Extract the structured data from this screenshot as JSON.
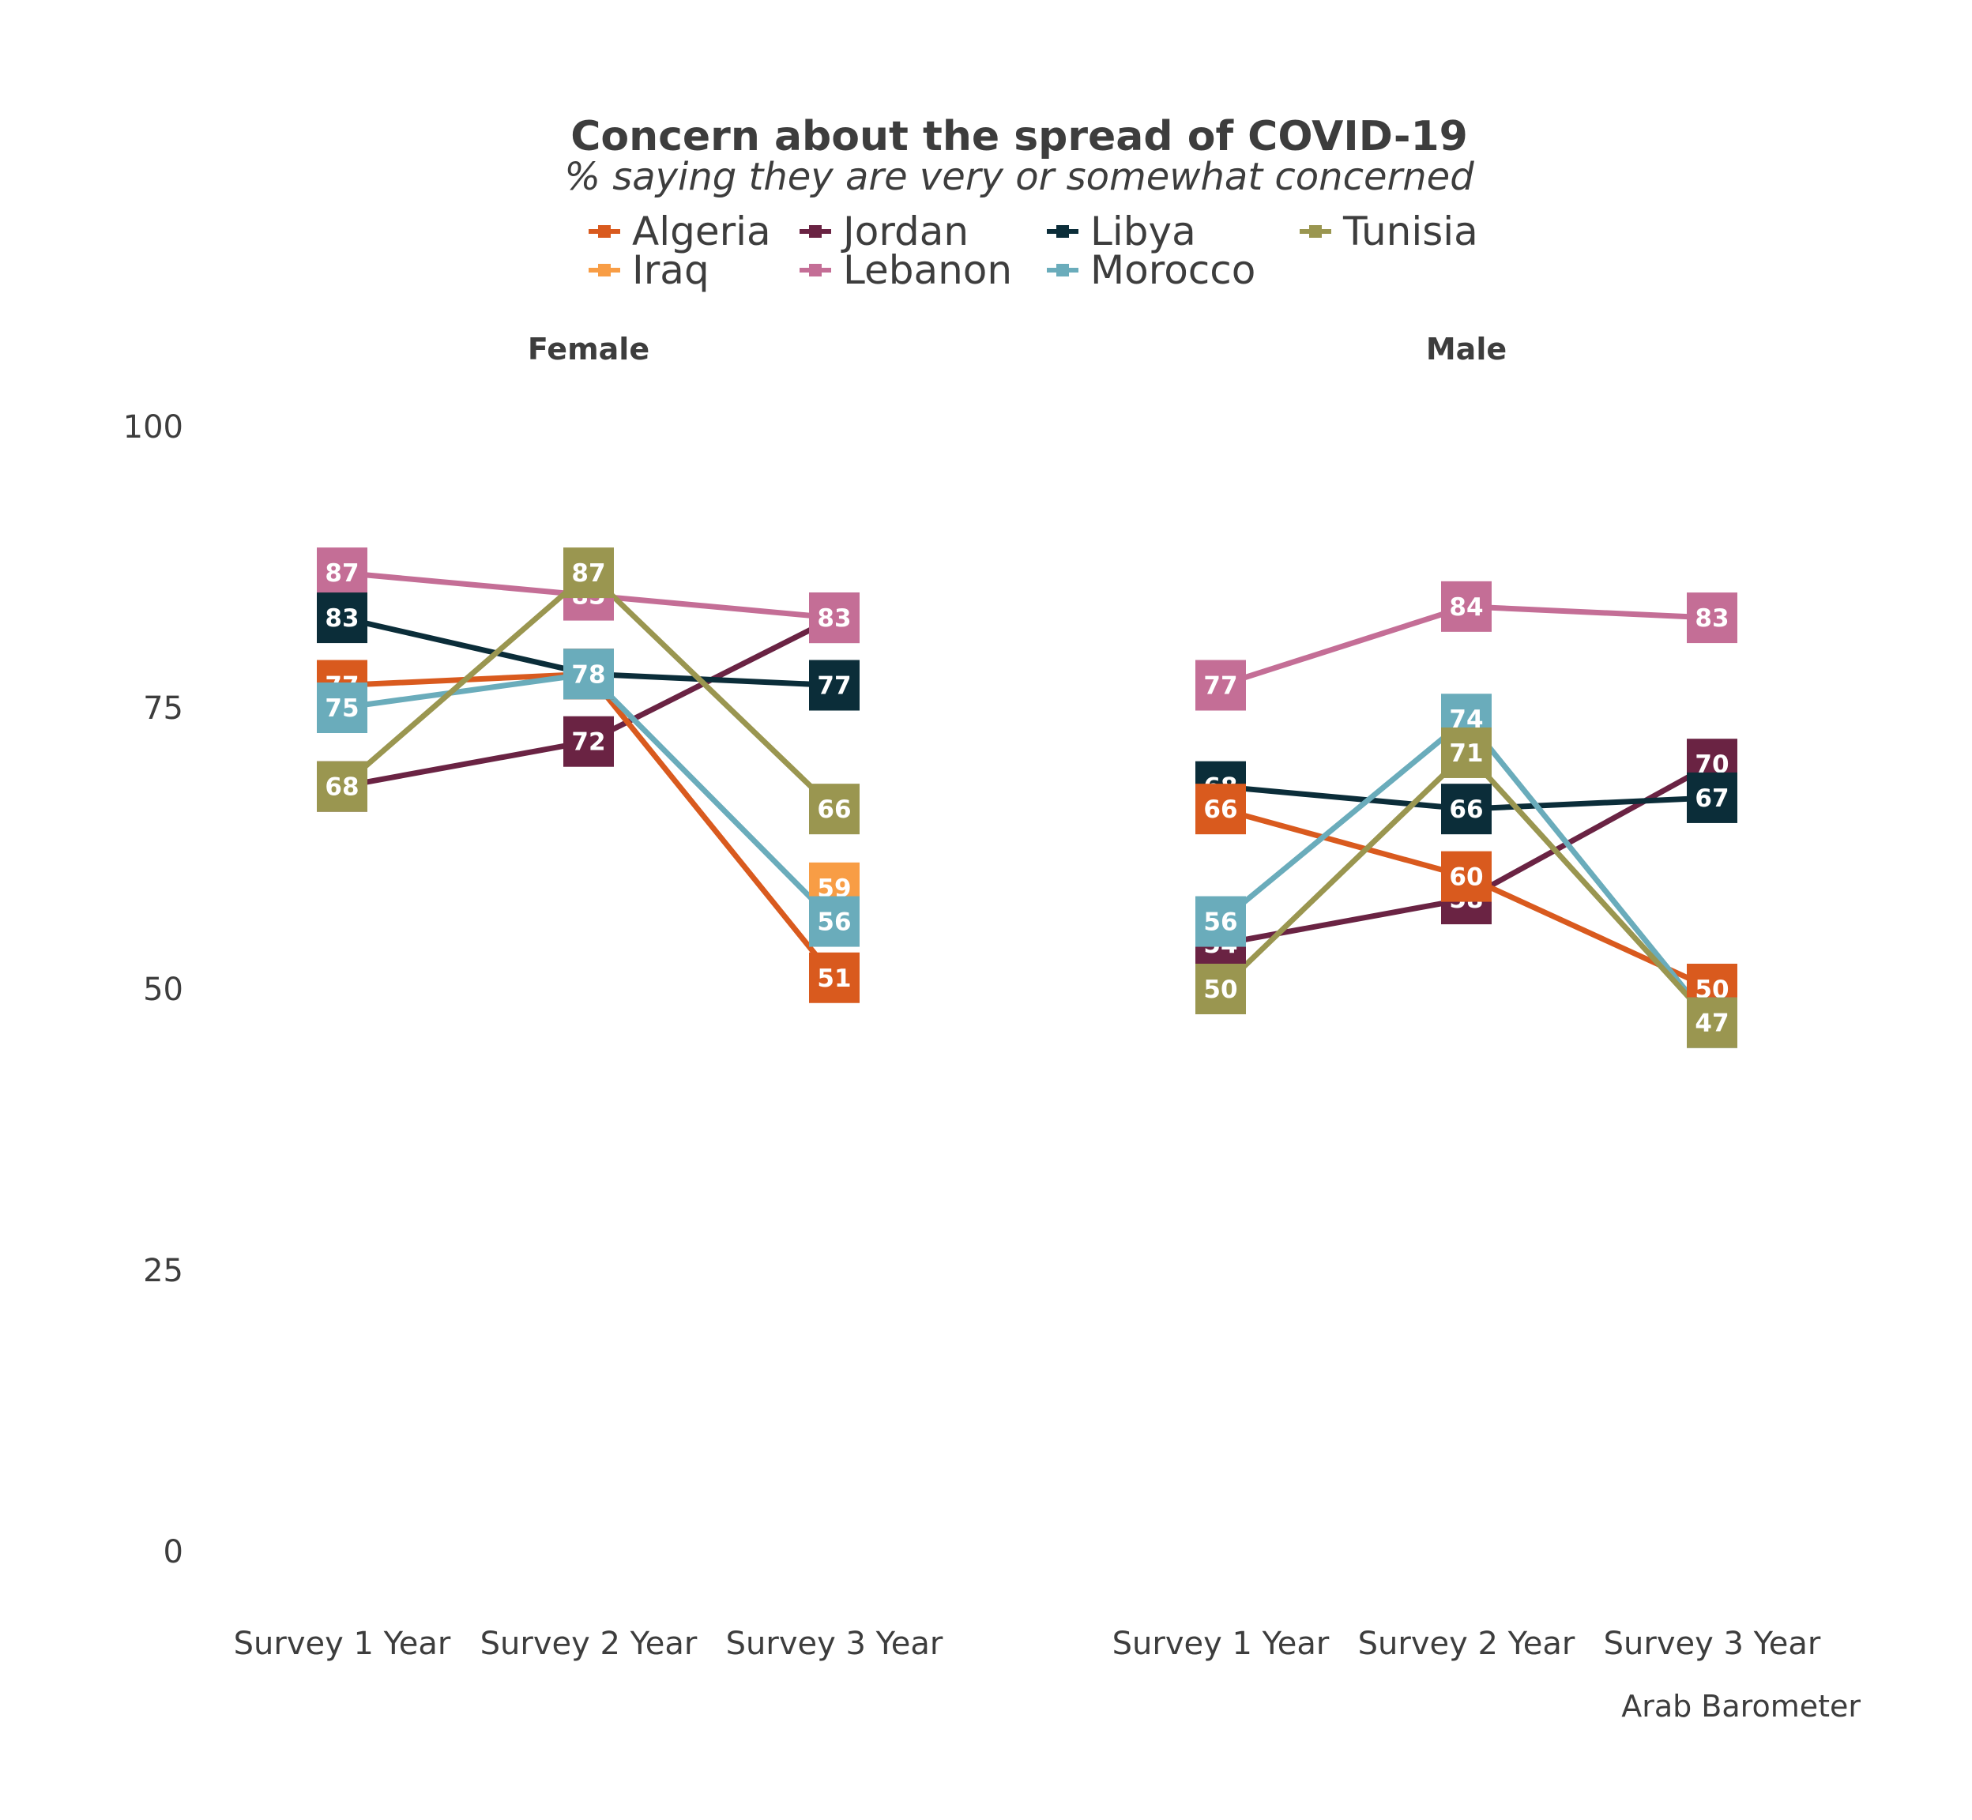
{
  "chart_data": {
    "type": "line",
    "title": "Concern about the spread of COVID-19",
    "subtitle": "% saying they are very or somewhat concerned",
    "caption": "Arab Barometer",
    "ylim": [
      0,
      100
    ],
    "y_ticks": [
      "0",
      "25",
      "50",
      "75",
      "100"
    ],
    "grid": false,
    "legend_position": "top",
    "categories": [
      "Survey 1 Year",
      "Survey 2 Year",
      "Survey 3 Year"
    ],
    "legend": [
      {
        "name": "Algeria",
        "color": "#d95a1e"
      },
      {
        "name": "Iraq",
        "color": "#f89d45"
      },
      {
        "name": "Jordan",
        "color": "#6a2343"
      },
      {
        "name": "Lebanon",
        "color": "#c46e96"
      },
      {
        "name": "Libya",
        "color": "#0b2d39"
      },
      {
        "name": "Morocco",
        "color": "#6aacbb"
      },
      {
        "name": "Tunisia",
        "color": "#9a9650"
      }
    ],
    "facets": [
      {
        "name": "Female",
        "series": [
          {
            "name": "Algeria",
            "values": [
              77,
              78,
              51
            ]
          },
          {
            "name": "Iraq",
            "values": [
              null,
              null,
              59
            ]
          },
          {
            "name": "Jordan",
            "values": [
              68,
              72,
              83
            ]
          },
          {
            "name": "Lebanon",
            "values": [
              87,
              85,
              83
            ]
          },
          {
            "name": "Libya",
            "values": [
              83,
              78,
              77
            ]
          },
          {
            "name": "Morocco",
            "values": [
              75,
              78,
              56
            ]
          },
          {
            "name": "Tunisia",
            "values": [
              68,
              87,
              66
            ]
          }
        ]
      },
      {
        "name": "Male",
        "series": [
          {
            "name": "Algeria",
            "values": [
              66,
              60,
              50
            ]
          },
          {
            "name": "Iraq",
            "values": [
              null,
              null,
              null
            ]
          },
          {
            "name": "Jordan",
            "values": [
              54,
              58,
              70
            ]
          },
          {
            "name": "Lebanon",
            "values": [
              77,
              84,
              83
            ]
          },
          {
            "name": "Libya",
            "values": [
              68,
              66,
              67
            ]
          },
          {
            "name": "Morocco",
            "values": [
              56,
              74,
              47
            ]
          },
          {
            "name": "Tunisia",
            "values": [
              50,
              71,
              47
            ]
          }
        ]
      }
    ]
  }
}
